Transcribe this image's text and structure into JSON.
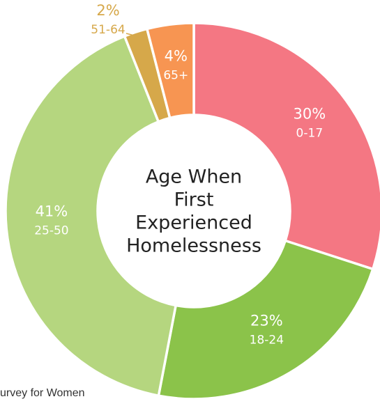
{
  "source_text": "urvey for Women",
  "chart_data": {
    "type": "pie",
    "variant": "donut",
    "center_title_lines": [
      "Age When",
      "First",
      "Experienced",
      "Homelessness"
    ],
    "slices": [
      {
        "category": "0-17",
        "value": 30,
        "label": "30%",
        "color": "#f47783",
        "label_color": "#ffffff"
      },
      {
        "category": "18-24",
        "value": 23,
        "label": "23%",
        "color": "#8bc34a",
        "label_color": "#ffffff"
      },
      {
        "category": "25-50",
        "value": 41,
        "label": "41%",
        "color": "#b5d67f",
        "label_color": "#ffffff"
      },
      {
        "category": "51-64",
        "value": 2,
        "label": "2%",
        "color": "#d6a84a",
        "label_color": "#d6a84a"
      },
      {
        "category": "65+",
        "value": 4,
        "label": "4%",
        "color": "#f79552",
        "label_color": "#ffffff"
      }
    ]
  }
}
